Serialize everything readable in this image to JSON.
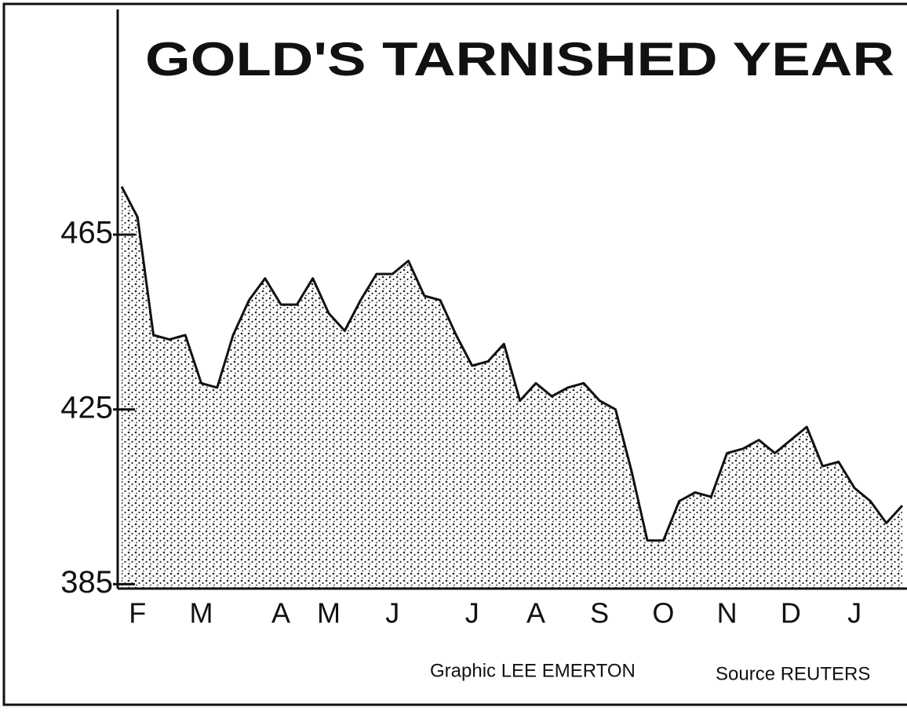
{
  "chart_data": {
    "type": "area",
    "title": "GOLD'S TARNISHED YEAR",
    "categories": [
      null,
      "F",
      null,
      null,
      null,
      "M",
      null,
      null,
      null,
      null,
      "A",
      null,
      null,
      "M",
      null,
      null,
      null,
      "J",
      null,
      null,
      null,
      null,
      "J",
      null,
      null,
      null,
      "A",
      null,
      null,
      null,
      "S",
      null,
      null,
      null,
      "O",
      null,
      null,
      null,
      "N",
      null,
      null,
      null,
      "D",
      null,
      null,
      null,
      "J",
      null,
      null,
      null
    ],
    "values": [
      476,
      469,
      442,
      441,
      442,
      431,
      430,
      442,
      450,
      455,
      449,
      449,
      455,
      447,
      443,
      450,
      456,
      456,
      459,
      451,
      450,
      442,
      435,
      436,
      440,
      427,
      431,
      428,
      430,
      431,
      427,
      425,
      411,
      395,
      395,
      404,
      406,
      405,
      415,
      416,
      418,
      415,
      418,
      421,
      412,
      413,
      407,
      404,
      399,
      403
    ],
    "color": "#111111",
    "ylim": [
      384,
      516
    ],
    "yticks": [
      385,
      425,
      465
    ],
    "credits": [
      "Graphic LEE EMERTON",
      "Source REUTERS"
    ]
  }
}
